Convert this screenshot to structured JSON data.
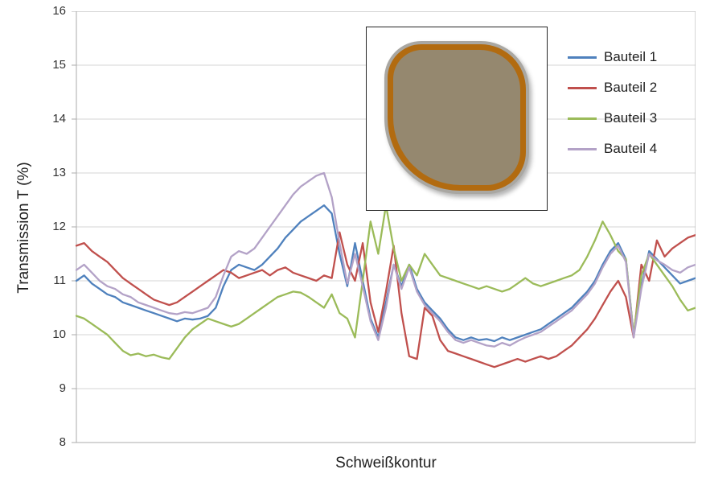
{
  "chart_data": {
    "type": "line",
    "title": "",
    "xlabel": "Schweißkontur",
    "ylabel": "Transmission T (%)",
    "ylim": [
      8,
      16
    ],
    "ytick_step": 1,
    "yticks": [
      "8",
      "9",
      "10",
      "11",
      "12",
      "13",
      "14",
      "15",
      "16"
    ],
    "grid": true,
    "gridline_color": "#d6d6d6",
    "axis_border_color": "#ababab",
    "legend_position": "top-right",
    "series": [
      {
        "name": "Bauteil 1",
        "color": "#4f81bd",
        "values": [
          11.0,
          11.1,
          10.95,
          10.85,
          10.75,
          10.7,
          10.6,
          10.55,
          10.5,
          10.45,
          10.4,
          10.35,
          10.3,
          10.25,
          10.3,
          10.28,
          10.3,
          10.35,
          10.5,
          10.9,
          11.2,
          11.3,
          11.25,
          11.2,
          11.3,
          11.45,
          11.6,
          11.8,
          11.95,
          12.1,
          12.2,
          12.3,
          12.4,
          12.25,
          11.5,
          10.9,
          11.7,
          11.0,
          10.3,
          9.95,
          10.6,
          11.3,
          10.9,
          11.3,
          10.85,
          10.6,
          10.45,
          10.3,
          10.1,
          9.95,
          9.9,
          9.95,
          9.9,
          9.92,
          9.88,
          9.95,
          9.9,
          9.95,
          10.0,
          10.05,
          10.1,
          10.2,
          10.3,
          10.4,
          10.5,
          10.65,
          10.8,
          11.0,
          11.3,
          11.55,
          11.7,
          11.4,
          10.0,
          10.9,
          11.55,
          11.4,
          11.25,
          11.1,
          10.95,
          11.0,
          11.05
        ]
      },
      {
        "name": "Bauteil 2",
        "color": "#c0504d",
        "values": [
          11.65,
          11.7,
          11.55,
          11.45,
          11.35,
          11.2,
          11.05,
          10.95,
          10.85,
          10.75,
          10.65,
          10.6,
          10.55,
          10.6,
          10.7,
          10.8,
          10.9,
          11.0,
          11.1,
          11.2,
          11.15,
          11.05,
          11.1,
          11.15,
          11.2,
          11.1,
          11.2,
          11.25,
          11.15,
          11.1,
          11.05,
          11.0,
          11.1,
          11.05,
          11.9,
          11.3,
          11.0,
          11.7,
          10.6,
          10.05,
          10.8,
          11.65,
          10.4,
          9.6,
          9.55,
          10.5,
          10.35,
          9.9,
          9.7,
          9.65,
          9.6,
          9.55,
          9.5,
          9.45,
          9.4,
          9.45,
          9.5,
          9.55,
          9.5,
          9.55,
          9.6,
          9.55,
          9.6,
          9.7,
          9.8,
          9.95,
          10.1,
          10.3,
          10.55,
          10.8,
          11.0,
          10.7,
          9.95,
          11.3,
          11.0,
          11.75,
          11.45,
          11.6,
          11.7,
          11.8,
          11.85
        ]
      },
      {
        "name": "Bauteil 3",
        "color": "#9bbb59",
        "values": [
          10.35,
          10.3,
          10.2,
          10.1,
          10.0,
          9.85,
          9.7,
          9.62,
          9.65,
          9.6,
          9.63,
          9.58,
          9.55,
          9.75,
          9.95,
          10.1,
          10.2,
          10.3,
          10.25,
          10.2,
          10.15,
          10.2,
          10.3,
          10.4,
          10.5,
          10.6,
          10.7,
          10.75,
          10.8,
          10.78,
          10.7,
          10.6,
          10.5,
          10.75,
          10.4,
          10.3,
          9.95,
          11.0,
          12.1,
          11.5,
          12.4,
          11.6,
          11.0,
          11.3,
          11.1,
          11.5,
          11.3,
          11.1,
          11.05,
          11.0,
          10.95,
          10.9,
          10.85,
          10.9,
          10.85,
          10.8,
          10.85,
          10.95,
          11.05,
          10.95,
          10.9,
          10.95,
          11.0,
          11.05,
          11.1,
          11.2,
          11.45,
          11.75,
          12.1,
          11.85,
          11.55,
          11.4,
          10.0,
          11.1,
          11.5,
          11.3,
          11.1,
          10.9,
          10.65,
          10.45,
          10.5
        ]
      },
      {
        "name": "Bauteil 4",
        "color": "#b3a2c7",
        "values": [
          11.2,
          11.3,
          11.15,
          11.0,
          10.9,
          10.85,
          10.75,
          10.7,
          10.6,
          10.55,
          10.5,
          10.45,
          10.4,
          10.38,
          10.42,
          10.4,
          10.45,
          10.5,
          10.7,
          11.1,
          11.45,
          11.55,
          11.5,
          11.6,
          11.8,
          12.0,
          12.2,
          12.4,
          12.6,
          12.75,
          12.85,
          12.95,
          13.0,
          12.55,
          11.7,
          10.95,
          11.5,
          10.9,
          10.25,
          9.9,
          10.5,
          11.3,
          10.85,
          11.25,
          10.8,
          10.55,
          10.4,
          10.25,
          10.05,
          9.9,
          9.85,
          9.9,
          9.85,
          9.8,
          9.78,
          9.85,
          9.8,
          9.88,
          9.95,
          10.0,
          10.05,
          10.15,
          10.25,
          10.35,
          10.45,
          10.6,
          10.75,
          10.95,
          11.25,
          11.5,
          11.65,
          11.35,
          9.95,
          10.85,
          11.5,
          11.38,
          11.3,
          11.2,
          11.15,
          11.25,
          11.3
        ]
      }
    ],
    "inset": {
      "description": "weld contour shape illustration",
      "box_border_color": "#262626",
      "box_background": "#ffffff",
      "outer_ring_color": "#a9a7a2",
      "ring_color": "#b26b10",
      "fill_color": "#95886f"
    }
  }
}
